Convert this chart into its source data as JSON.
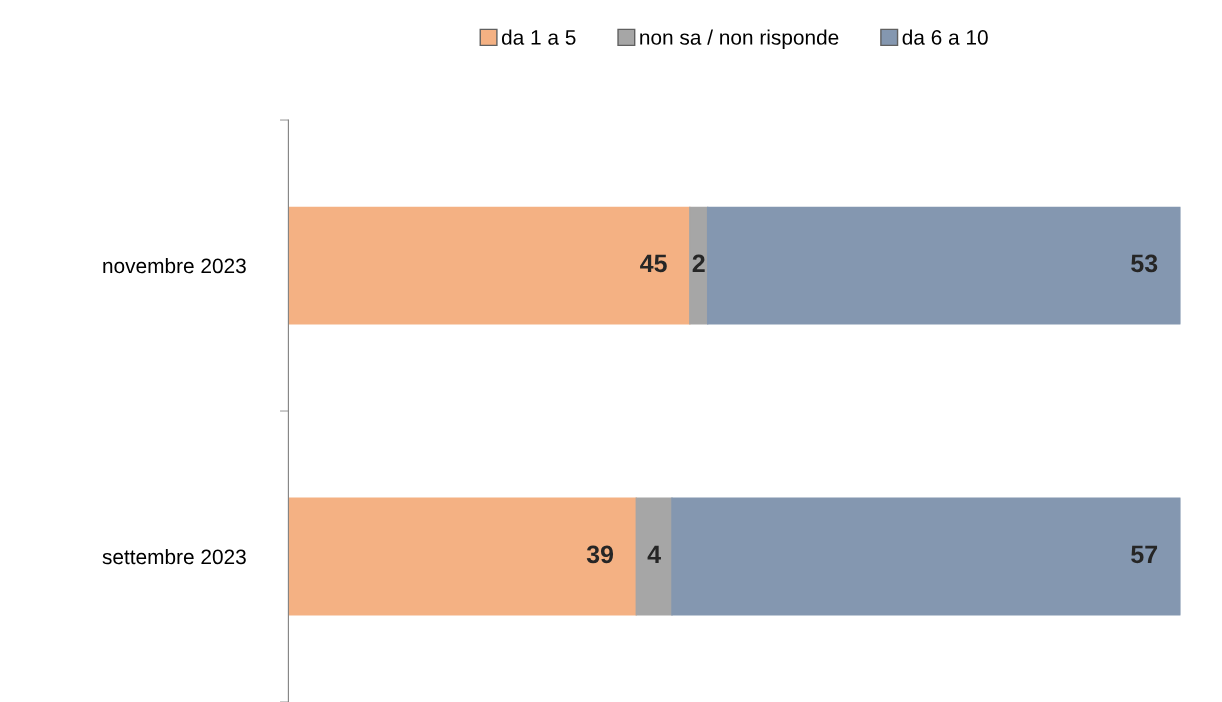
{
  "chart_data": {
    "type": "bar",
    "orientation": "horizontal",
    "stacked": true,
    "data_labels": true,
    "legend": "top",
    "grid": false,
    "categories": [
      "novembre 2023",
      "settembre 2023"
    ],
    "series": [
      {
        "name": "da 1 a 5",
        "color": "#f4b183",
        "values": [
          45,
          39
        ]
      },
      {
        "name": "non sa / non risponde",
        "color": "#a6a6a6",
        "values": [
          2,
          4
        ]
      },
      {
        "name": "da 6 a 10",
        "color": "#8497b0",
        "values": [
          53,
          57
        ]
      }
    ]
  }
}
